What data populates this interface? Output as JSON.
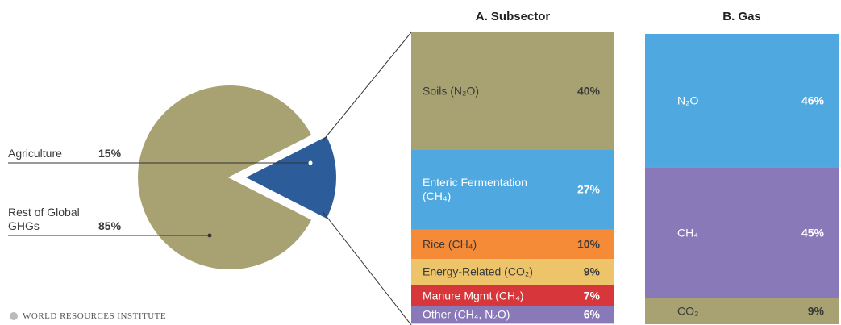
{
  "chart_data": [
    {
      "type": "pie",
      "categories": [
        "Agriculture",
        "Rest of Global GHGs"
      ],
      "values": [
        15,
        85
      ],
      "value_labels": [
        "15%",
        "85%"
      ],
      "colors": [
        "#2c5d9a",
        "#a8a272"
      ]
    },
    {
      "type": "bar",
      "stacked": true,
      "title": "A. Subsector",
      "series": [
        {
          "name": "Soils (N₂O)",
          "color": "#a8a272",
          "values": [
            40
          ],
          "value_labels": [
            "40%"
          ]
        },
        {
          "name": "Enteric Fermentation (CH₄)",
          "color": "#4fa8df",
          "values": [
            27
          ],
          "value_labels": [
            "27%"
          ]
        },
        {
          "name": "Rice (CH₄)",
          "color": "#f68b37",
          "values": [
            10
          ],
          "value_labels": [
            "10%"
          ]
        },
        {
          "name": "Energy-Related (CO₂)",
          "color": "#edc46a",
          "values": [
            9
          ],
          "value_labels": [
            "9%"
          ]
        },
        {
          "name": "Manure Mgmt (CH₄)",
          "color": "#d7373a",
          "values": [
            7
          ],
          "value_labels": [
            "7%"
          ]
        },
        {
          "name": "Other (CH₄, N₂O)",
          "color": "#8a79b8",
          "values": [
            6
          ],
          "value_labels": [
            "6%"
          ]
        }
      ]
    },
    {
      "type": "bar",
      "stacked": true,
      "title": "B. Gas",
      "series": [
        {
          "name": "N₂O",
          "color": "#4fa8df",
          "values": [
            46
          ],
          "value_labels": [
            "46%"
          ]
        },
        {
          "name": "CH₄",
          "color": "#8a79b8",
          "values": [
            45
          ],
          "value_labels": [
            "45%"
          ]
        },
        {
          "name": "CO₂",
          "color": "#a8a272",
          "values": [
            9
          ],
          "value_labels": [
            "9%"
          ]
        }
      ]
    }
  ],
  "source": "WORLD RESOURCES INSTITUTE"
}
